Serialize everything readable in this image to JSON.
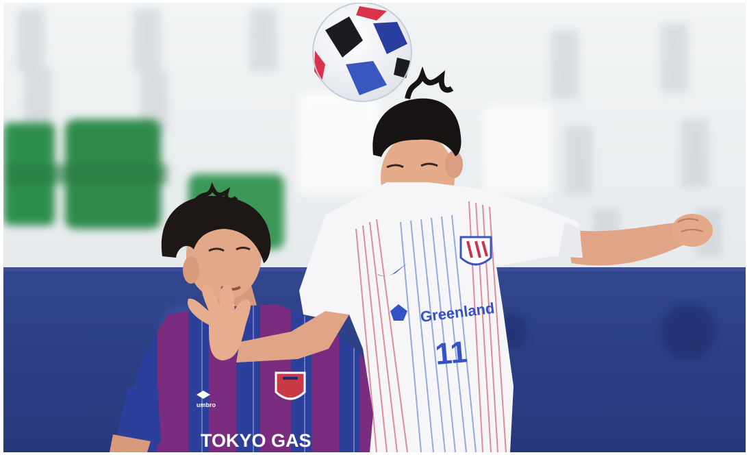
{
  "photo": {
    "subject": "Football players contesting a header in a stadium",
    "colors": {
      "seats_white": "#eef1f3",
      "seats_green": "#2f8f4e",
      "board_blue": "#2b3f86",
      "home_kit_white": "#f6f6f8",
      "kit_stripe_red": "#c9354b",
      "kit_stripe_blue": "#4a66c8",
      "away_kit_blue": "#2c3f9a",
      "away_kit_magenta": "#7a2c7e",
      "skin": "#e3a98a",
      "hair": "#1a1515"
    },
    "jersey_front": {
      "sponsor": "Greenland",
      "number": "11",
      "maker_mark": "swoosh-icon",
      "crest": "club-crest-icon"
    },
    "jersey_back": {
      "sponsor": "TOKYO GAS",
      "maker": "umbro",
      "crest": "club-crest-icon"
    },
    "ball": "football-icon"
  }
}
